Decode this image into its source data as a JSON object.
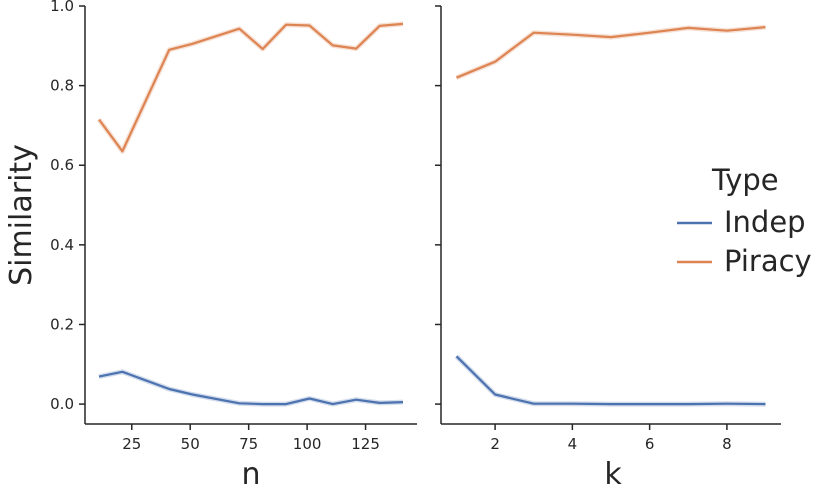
{
  "chart_data": [
    {
      "type": "line",
      "xlabel": "n",
      "ylabel": "Similarity",
      "xlim": [
        5,
        147
      ],
      "ylim": [
        -0.05,
        1.0
      ],
      "xticks": [
        "25",
        "50",
        "75",
        "100",
        "125"
      ],
      "yticks": [
        "0.0",
        "0.2",
        "0.4",
        "0.6",
        "0.8",
        "1.0"
      ],
      "x": [
        11,
        21,
        41,
        51,
        71,
        81,
        91,
        101,
        111,
        121,
        131,
        141
      ],
      "series": [
        {
          "name": "Indep",
          "color": "#4c72b0",
          "values": [
            0.069,
            0.081,
            0.038,
            0.024,
            0.002,
            0.0,
            0.0,
            0.014,
            0.0,
            0.011,
            0.003,
            0.005
          ]
        },
        {
          "name": "Piracy",
          "color": "#dd8452",
          "values": [
            0.715,
            0.635,
            0.89,
            0.905,
            0.943,
            0.892,
            0.953,
            0.951,
            0.901,
            0.893,
            0.95,
            0.955
          ]
        }
      ],
      "grid": false
    },
    {
      "type": "line",
      "xlabel": "k",
      "ylabel": "",
      "xlim": [
        0.6,
        9.4
      ],
      "ylim": [
        -0.05,
        1.0
      ],
      "xticks": [
        "2",
        "4",
        "6",
        "8"
      ],
      "x": [
        1,
        2,
        3,
        4,
        5,
        6,
        7,
        8,
        9
      ],
      "series": [
        {
          "name": "Indep",
          "color": "#4c72b0",
          "values": [
            0.12,
            0.024,
            0.001,
            0.001,
            0.0,
            0.0,
            0.0,
            0.001,
            0.0
          ]
        },
        {
          "name": "Piracy",
          "color": "#dd8452",
          "values": [
            0.82,
            0.86,
            0.933,
            0.928,
            0.922,
            0.933,
            0.945,
            0.938,
            0.947
          ]
        }
      ],
      "grid": false
    }
  ],
  "legend": {
    "title": "Type",
    "placement": "right",
    "entries": [
      {
        "label": "Indep",
        "color": "#4c72b0"
      },
      {
        "label": "Piracy",
        "color": "#dd8452"
      }
    ]
  }
}
